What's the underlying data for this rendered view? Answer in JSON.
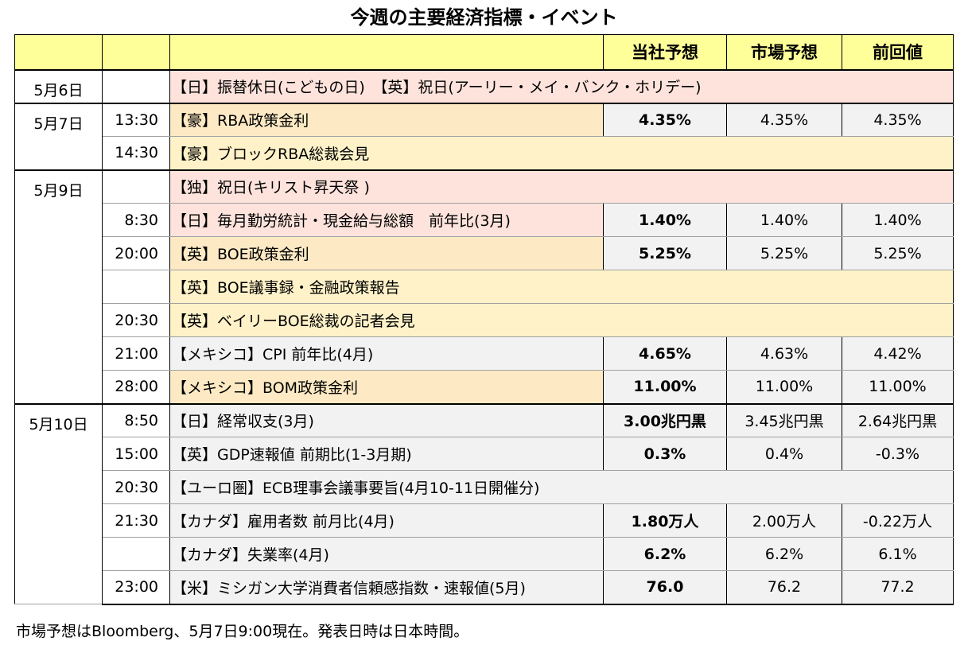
{
  "title": "今週の主要経済指標・イベント",
  "header": {
    "own": "当社予想",
    "market": "市場予想",
    "previous": "前回値"
  },
  "rows": [
    {
      "date": "5月6日",
      "time": "",
      "event": "【日】振替休日(こどもの日)　【英】祝日(アーリー・メイ・バンク・ホリデー)",
      "own": "",
      "market": "",
      "previous": ""
    },
    {
      "date": "5月7日",
      "time": "13:30",
      "event": "【豪】RBA政策金利",
      "own": "4.35%",
      "market": "4.35%",
      "previous": "4.35%"
    },
    {
      "date": "",
      "time": "14:30",
      "event": "【豪】ブロックRBA総裁会見",
      "own": "",
      "market": "",
      "previous": ""
    },
    {
      "date": "5月9日",
      "time": "",
      "event": "【独】祝日(キリスト昇天祭 )",
      "own": "",
      "market": "",
      "previous": ""
    },
    {
      "date": "",
      "time": "8:30",
      "event": "【日】毎月勤労統計・現金給与総額　前年比(3月)",
      "own": "1.40%",
      "market": "1.40%",
      "previous": "1.40%"
    },
    {
      "date": "",
      "time": "20:00",
      "event": "【英】BOE政策金利",
      "own": "5.25%",
      "market": "5.25%",
      "previous": "5.25%"
    },
    {
      "date": "",
      "time": "",
      "event": "【英】BOE議事録・金融政策報告",
      "own": "",
      "market": "",
      "previous": ""
    },
    {
      "date": "",
      "time": "20:30",
      "event": "【英】ベイリーBOE総裁の記者会見",
      "own": "",
      "market": "",
      "previous": ""
    },
    {
      "date": "",
      "time": "21:00",
      "event": "【メキシコ】CPI 前年比(4月)",
      "own": "4.65%",
      "market": "4.63%",
      "previous": "4.42%"
    },
    {
      "date": "",
      "time": "28:00",
      "event": "【メキシコ】BOM政策金利",
      "own": "11.00%",
      "market": "11.00%",
      "previous": "11.00%"
    },
    {
      "date": "5月10日",
      "time": "8:50",
      "event": "【日】経常収支(3月)",
      "own": "3.00兆円黒",
      "market": "3.45兆円黒",
      "previous": "2.64兆円黒"
    },
    {
      "date": "",
      "time": "15:00",
      "event": "【英】GDP速報値 前期比(1-3月期)",
      "own": "0.3%",
      "market": "0.4%",
      "previous": "-0.3%"
    },
    {
      "date": "",
      "time": "20:30",
      "event": "【ユーロ圏】ECB理事会議事要旨(4月10-11日開催分)",
      "own": "",
      "market": "",
      "previous": ""
    },
    {
      "date": "",
      "time": "21:30",
      "event": "【カナダ】雇用者数 前月比(4月)",
      "own": "1.80万人",
      "market": "2.00万人",
      "previous": "-0.22万人"
    },
    {
      "date": "",
      "time": "",
      "event": "【カナダ】失業率(4月)",
      "own": "6.2%",
      "market": "6.2%",
      "previous": "6.1%"
    },
    {
      "date": "",
      "time": "23:00",
      "event": "【米】ミシガン大学消費者信頼感指数・速報値(5月)",
      "own": "76.0",
      "market": "76.2",
      "previous": "77.2"
    }
  ],
  "footnote": "市場予想はBloomberg、5月7日9:00現在。発表日時は日本時間。"
}
